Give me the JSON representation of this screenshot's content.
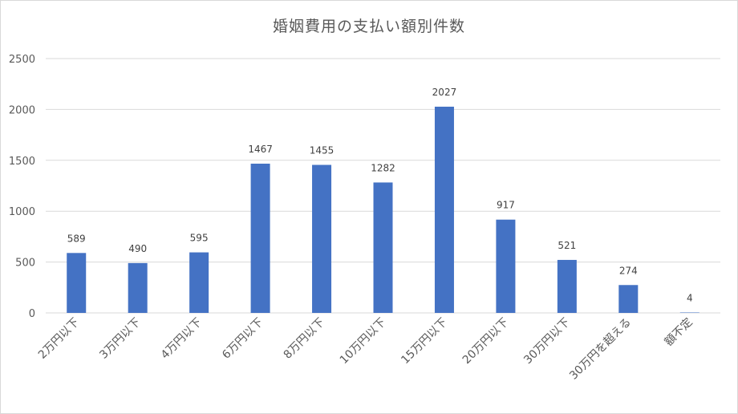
{
  "chart_data": {
    "type": "bar",
    "title": "婚姻費用の支払い額別件数",
    "xlabel": "",
    "ylabel": "",
    "categories": [
      "2万円以下",
      "3万円以下",
      "4万円以下",
      "6万円以下",
      "8万円以下",
      "10万円以下",
      "15万円以下",
      "20万円以下",
      "30万円以下",
      "30万円を超える",
      "額不定"
    ],
    "values": [
      589,
      490,
      595,
      1467,
      1455,
      1282,
      2027,
      917,
      521,
      274,
      4
    ],
    "ylim": [
      0,
      2500
    ],
    "yticks": [
      0,
      500,
      1000,
      1500,
      2000,
      2500
    ],
    "grid": true,
    "data_labels": true,
    "bar_color": "#4472C4",
    "grid_color": "#d9d9d9"
  }
}
